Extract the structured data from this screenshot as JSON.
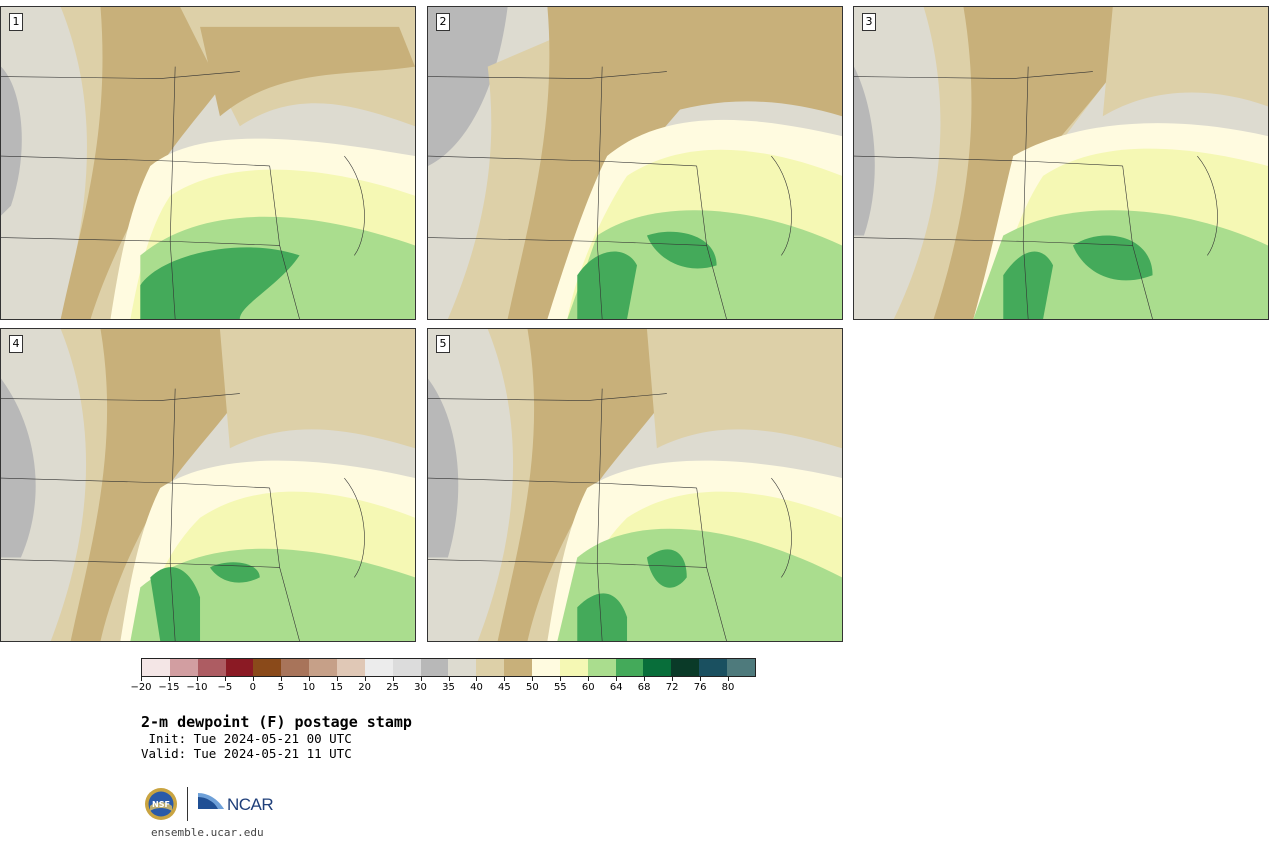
{
  "title": "2-m dewpoint (F) postage stamp",
  "init": " Init: Tue 2024-05-21 00 UTC",
  "valid": "Valid: Tue 2024-05-21 11 UTC",
  "site": "ensemble.ucar.edu",
  "logos": {
    "nsf_text": "NSF",
    "ncar_text": "NCAR"
  },
  "panels": [
    {
      "label": "1"
    },
    {
      "label": "2"
    },
    {
      "label": "3"
    },
    {
      "label": "4"
    },
    {
      "label": "5"
    }
  ],
  "colorbar": {
    "ticks": [
      "−20",
      "−15",
      "−10",
      "−5",
      "0",
      "5",
      "10",
      "15",
      "20",
      "25",
      "30",
      "35",
      "40",
      "45",
      "50",
      "55",
      "60",
      "64",
      "68",
      "72",
      "76",
      "80"
    ],
    "colors": [
      "#f4e6e6",
      "#d29ea1",
      "#ad5c62",
      "#8b1a24",
      "#8a4a1a",
      "#a8745a",
      "#c6a088",
      "#e0c8b6",
      "#ececec",
      "#dcdcdc",
      "#b8b8b8",
      "#dddbd0",
      "#ddd0a8",
      "#c8b07a",
      "#fffbe0",
      "#f5f8b4",
      "#aadd8e",
      "#44aa5a",
      "#086e3a",
      "#0a3a28",
      "#1a5060",
      "#4e7a7c"
    ]
  }
}
